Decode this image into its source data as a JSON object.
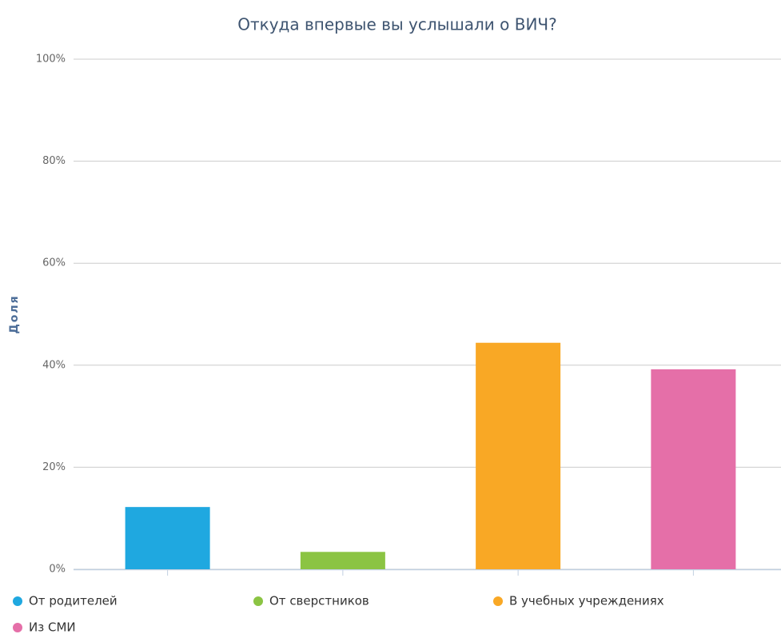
{
  "chart_data": {
    "type": "bar",
    "title": "Откуда впервые вы услышали о ВИЧ?",
    "ylabel": "Доля",
    "categories": [
      "От родителей",
      "От сверстников",
      "В учебных учреждениях",
      "Из СМИ"
    ],
    "values": [
      12.2,
      3.4,
      44.4,
      39.2
    ],
    "colors": [
      "#1fa8e0",
      "#8bc443",
      "#f9a825",
      "#e56fa8"
    ],
    "ylim": [
      0,
      100
    ],
    "yticks": [
      {
        "value": 0,
        "label": "0%"
      },
      {
        "value": 20,
        "label": "20%"
      },
      {
        "value": 40,
        "label": "40%"
      },
      {
        "value": 60,
        "label": "60%"
      },
      {
        "value": 80,
        "label": "80%"
      },
      {
        "value": 100,
        "label": "100%"
      }
    ],
    "grid": true
  }
}
